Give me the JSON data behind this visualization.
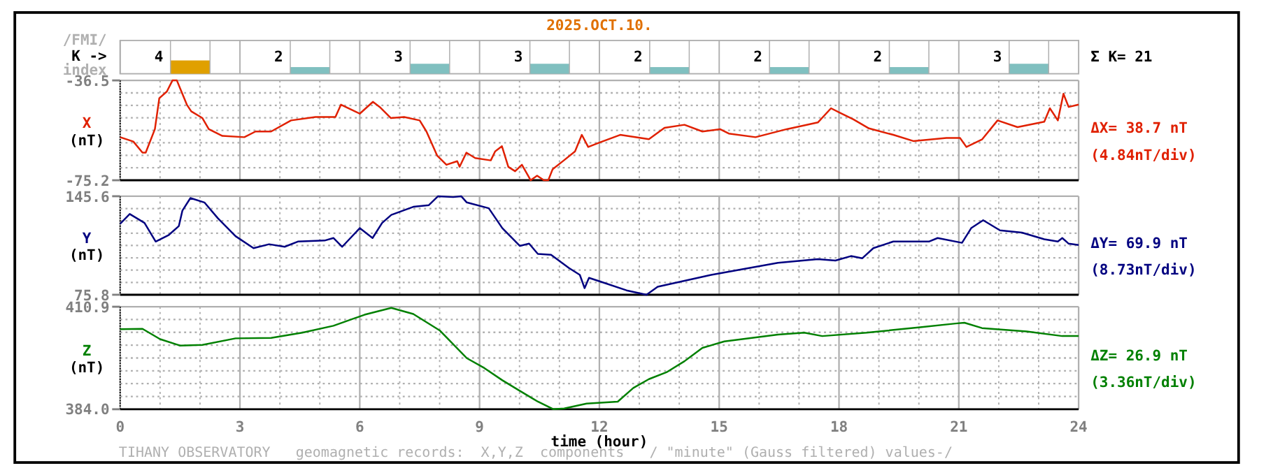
{
  "chart_data": [
    {
      "type": "bar",
      "title": "2025.OCT.10.",
      "ylabel": "K ->",
      "categories": [
        null,
        null,
        null,
        null,
        null,
        null,
        null,
        null
      ],
      "values": [
        4,
        2,
        3,
        3,
        2,
        2,
        2,
        3
      ],
      "colors": [
        "#e0a000",
        "#80c0c0",
        "#80c0c0",
        "#80c0c0",
        "#80c0c0",
        "#80c0c0",
        "#80c0c0",
        "#80c0c0"
      ],
      "data_labels": true,
      "tick_labels": false,
      "annotations": [
        "/FMI/",
        "index",
        "Σ K= 21"
      ]
    },
    {
      "type": "line",
      "ylabel": "(nT)",
      "xlim": [
        0,
        24
      ],
      "xticks": [
        0,
        {
          "value": 1,
          "label": null
        },
        {
          "value": 2,
          "label": null
        },
        3,
        {
          "value": 4,
          "label": null
        },
        {
          "value": 5,
          "label": null
        },
        6,
        {
          "value": 7,
          "label": null
        },
        {
          "value": 8,
          "label": null
        },
        9,
        {
          "value": 10,
          "label": null
        },
        {
          "value": 11,
          "label": null
        },
        12,
        {
          "value": 13,
          "label": null
        },
        {
          "value": 14,
          "label": null
        },
        15,
        {
          "value": 16,
          "label": null
        },
        {
          "value": 17,
          "label": null
        },
        18,
        {
          "value": 19,
          "label": null
        },
        {
          "value": 20,
          "label": null
        },
        21,
        {
          "value": 22,
          "label": null
        },
        {
          "value": 23,
          "label": null
        },
        24
      ],
      "ylim": [
        -75.2,
        -36.5
      ],
      "yticks": [
        -36.5,
        {
          "value": -41.34,
          "label": null
        },
        {
          "value": -46.18,
          "label": null
        },
        {
          "value": -51.01,
          "label": null
        },
        {
          "value": -55.85,
          "label": null
        },
        {
          "value": -60.69,
          "label": null
        },
        {
          "value": -65.53,
          "label": null
        },
        {
          "value": -70.36,
          "label": null
        },
        -75.2
      ],
      "grid": true,
      "tick_labels": "y",
      "annotations": [
        "ΔX= 38.7 nT",
        "(4.84nT/div)"
      ],
      "series": [
        {
          "name": "X",
          "color": "#e02000",
          "x": [
            0,
            0.33,
            0.56,
            0.64,
            0.87,
            0.98,
            1.17,
            1.31,
            1.42,
            1.67,
            1.78,
            2.06,
            2.22,
            2.56,
            3.11,
            3.39,
            3.78,
            4.28,
            4.89,
            5.39,
            5.53,
            6.0,
            6.33,
            6.5,
            6.78,
            7.11,
            7.5,
            7.67,
            7.94,
            8.17,
            8.44,
            8.5,
            8.67,
            8.89,
            9.28,
            9.39,
            9.56,
            9.72,
            9.89,
            10.06,
            10.28,
            10.44,
            10.61,
            10.72,
            10.83,
            11.11,
            11.39,
            11.56,
            11.72,
            12.0,
            12.52,
            13.24,
            13.63,
            14.13,
            14.58,
            15.02,
            15.24,
            15.91,
            16.69,
            17.47,
            17.8,
            18.02,
            18.36,
            18.75,
            19.36,
            19.86,
            20.69,
            21.03,
            21.19,
            21.58,
            21.97,
            22.47,
            23.14,
            23.28,
            23.48,
            23.62,
            23.75,
            24.0
          ],
          "values": [
            -58.5,
            -60.2,
            -64.5,
            -64.5,
            -55.4,
            -43.4,
            -40.8,
            -36.5,
            -36.5,
            -45.9,
            -48.5,
            -51.1,
            -55.4,
            -58.0,
            -58.5,
            -56.3,
            -56.3,
            -52.0,
            -50.7,
            -50.7,
            -45.9,
            -49.4,
            -44.8,
            -46.8,
            -51.1,
            -50.7,
            -52.0,
            -56.3,
            -65.7,
            -69.2,
            -67.8,
            -70.0,
            -64.5,
            -66.6,
            -67.5,
            -64.0,
            -62.0,
            -70.0,
            -71.7,
            -69.2,
            -75.2,
            -73.4,
            -75.2,
            -75.2,
            -70.9,
            -67.5,
            -64.0,
            -57.6,
            -62.3,
            -60.6,
            -57.6,
            -59.3,
            -54.9,
            -53.7,
            -56.3,
            -55.4,
            -57.1,
            -58.5,
            -55.4,
            -52.8,
            -47.3,
            -49.0,
            -51.6,
            -55.1,
            -57.6,
            -60.0,
            -58.8,
            -58.8,
            -62.3,
            -59.4,
            -52.0,
            -54.6,
            -52.5,
            -47.3,
            -52.0,
            -41.7,
            -46.8,
            -45.9
          ]
        }
      ]
    },
    {
      "type": "line",
      "ylabel": "(nT)",
      "xlim": [
        0,
        24
      ],
      "xticks": [
        0,
        {
          "value": 1,
          "label": null
        },
        {
          "value": 2,
          "label": null
        },
        3,
        {
          "value": 4,
          "label": null
        },
        {
          "value": 5,
          "label": null
        },
        6,
        {
          "value": 7,
          "label": null
        },
        {
          "value": 8,
          "label": null
        },
        9,
        {
          "value": 10,
          "label": null
        },
        {
          "value": 11,
          "label": null
        },
        12,
        {
          "value": 13,
          "label": null
        },
        {
          "value": 14,
          "label": null
        },
        15,
        {
          "value": 16,
          "label": null
        },
        {
          "value": 17,
          "label": null
        },
        18,
        {
          "value": 19,
          "label": null
        },
        {
          "value": 20,
          "label": null
        },
        21,
        {
          "value": 22,
          "label": null
        },
        {
          "value": 23,
          "label": null
        },
        24
      ],
      "ylim": [
        75.8,
        145.6
      ],
      "yticks": [
        75.8,
        {
          "value": 84.53,
          "label": null
        },
        {
          "value": 93.25,
          "label": null
        },
        {
          "value": 101.98,
          "label": null
        },
        {
          "value": 110.7,
          "label": null
        },
        {
          "value": 119.43,
          "label": null
        },
        {
          "value": 128.15,
          "label": null
        },
        {
          "value": 136.88,
          "label": null
        },
        145.6
      ],
      "grid": true,
      "tick_labels": "y",
      "annotations": [
        "ΔY= 69.9 nT",
        "(8.73nT/div)"
      ],
      "series": [
        {
          "name": "Y",
          "color": "#000080",
          "x": [
            0,
            0.24,
            0.61,
            0.89,
            1.22,
            1.47,
            1.56,
            1.76,
            2.11,
            2.45,
            2.89,
            3.34,
            3.73,
            4.12,
            4.45,
            5.12,
            5.34,
            5.56,
            6.0,
            6.32,
            6.56,
            6.79,
            7.34,
            7.73,
            7.96,
            8.34,
            8.54,
            8.68,
            9.23,
            9.57,
            10.01,
            10.24,
            10.46,
            10.79,
            11.24,
            11.51,
            11.63,
            11.74,
            12.02,
            12.68,
            13.18,
            13.46,
            14.8,
            16.47,
            17.47,
            17.91,
            18.3,
            18.58,
            18.86,
            19.36,
            20.25,
            20.47,
            21.08,
            21.31,
            21.61,
            22.03,
            22.58,
            23.14,
            23.48,
            23.59,
            23.75,
            24.0
          ],
          "values": [
            126.1,
            133.0,
            126.7,
            113.5,
            118.2,
            124.5,
            135.5,
            144.3,
            141.2,
            129.9,
            117.3,
            108.8,
            111.6,
            109.8,
            113.5,
            114.2,
            116.0,
            109.8,
            123.0,
            116.0,
            126.7,
            132.4,
            138.1,
            139.3,
            145.6,
            145.0,
            145.6,
            141.2,
            137.1,
            123.0,
            110.4,
            112.0,
            104.7,
            104.1,
            94.7,
            89.9,
            80.5,
            87.8,
            85.2,
            78.9,
            75.8,
            81.5,
            89.9,
            98.4,
            101.0,
            100.0,
            103.2,
            101.6,
            108.8,
            113.5,
            113.5,
            116.0,
            112.6,
            123.0,
            128.6,
            121.4,
            119.8,
            115.1,
            113.5,
            116.0,
            112.0,
            111.0
          ]
        }
      ]
    },
    {
      "type": "line",
      "ylabel": "(nT)",
      "xlabel": "time (hour)",
      "xlim": [
        0,
        24
      ],
      "xticks": [
        0,
        {
          "value": 1,
          "label": null
        },
        {
          "value": 2,
          "label": null
        },
        3,
        {
          "value": 4,
          "label": null
        },
        {
          "value": 5,
          "label": null
        },
        6,
        {
          "value": 7,
          "label": null
        },
        {
          "value": 8,
          "label": null
        },
        9,
        {
          "value": 10,
          "label": null
        },
        {
          "value": 11,
          "label": null
        },
        12,
        {
          "value": 13,
          "label": null
        },
        {
          "value": 14,
          "label": null
        },
        15,
        {
          "value": 16,
          "label": null
        },
        {
          "value": 17,
          "label": null
        },
        18,
        {
          "value": 19,
          "label": null
        },
        {
          "value": 20,
          "label": null
        },
        21,
        {
          "value": 22,
          "label": null
        },
        {
          "value": 23,
          "label": null
        },
        24
      ],
      "ylim": [
        384.0,
        410.9
      ],
      "yticks": [
        {
          "value": 384.0,
          "label": "384.0"
        },
        {
          "value": 387.36,
          "label": null
        },
        {
          "value": 390.73,
          "label": null
        },
        {
          "value": 394.09,
          "label": null
        },
        {
          "value": 397.45,
          "label": null
        },
        {
          "value": 400.81,
          "label": null
        },
        {
          "value": 404.18,
          "label": null
        },
        {
          "value": 407.54,
          "label": null
        },
        410.9
      ],
      "grid": true,
      "annotations": [
        "ΔZ= 26.9 nT",
        "(3.36nT/div)",
        "TIHANY OBSERVATORY   geomagnetic records:  X,Y,Z  components   / \"minute\" (Gauss filtered) values-/"
      ],
      "series": [
        {
          "name": "Z",
          "color": "#008000",
          "x": [
            0,
            0.56,
            1.0,
            1.5,
            2.06,
            2.89,
            3.78,
            4.56,
            5.34,
            6.12,
            6.79,
            7.34,
            8.0,
            8.68,
            9.12,
            9.57,
            10.01,
            10.46,
            10.85,
            11.12,
            11.68,
            12.46,
            12.85,
            13.24,
            13.68,
            14.13,
            14.58,
            15.13,
            16.47,
            17.13,
            17.58,
            18.69,
            20.03,
            20.92,
            21.14,
            21.58,
            22.7,
            23.59,
            24.0
          ],
          "values": [
            405.0,
            405.1,
            402.4,
            400.7,
            400.9,
            402.6,
            402.7,
            404.1,
            405.9,
            408.8,
            410.6,
            409.0,
            404.7,
            397.4,
            394.8,
            391.6,
            388.8,
            386.0,
            384.0,
            384.2,
            385.5,
            386.0,
            389.6,
            391.9,
            393.7,
            396.6,
            400.1,
            401.8,
            403.6,
            404.1,
            403.2,
            404.1,
            405.5,
            406.5,
            406.7,
            405.3,
            404.4,
            403.2,
            403.2
          ]
        }
      ]
    }
  ]
}
